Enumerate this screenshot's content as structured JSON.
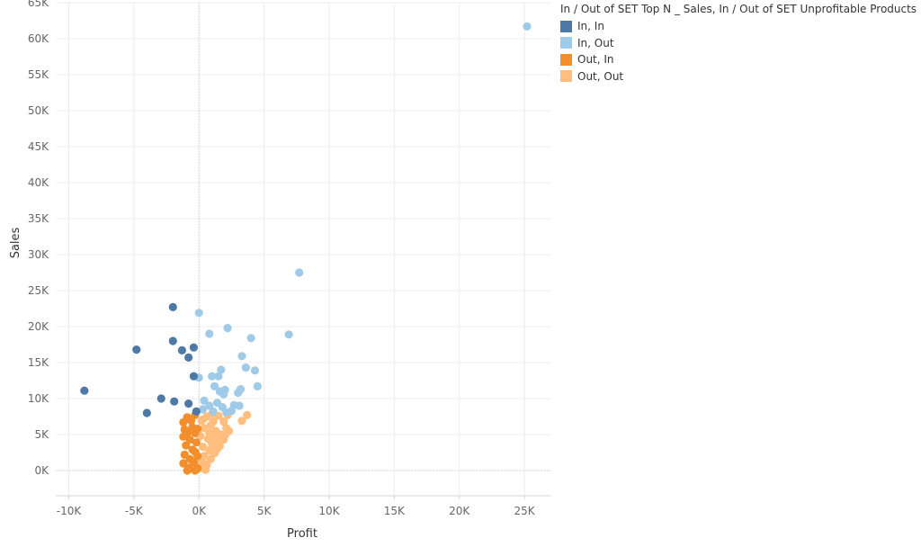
{
  "chart_data": {
    "type": "scatter",
    "xlabel": "Profit",
    "ylabel": "Sales",
    "xlim": [
      -11000,
      27000
    ],
    "ylim": [
      -3500,
      65000
    ],
    "x_ticks": [
      -10000,
      -5000,
      0,
      5000,
      10000,
      15000,
      20000,
      25000
    ],
    "x_tick_labels": [
      "-10K",
      "-5K",
      "0K",
      "5K",
      "10K",
      "15K",
      "20K",
      "25K"
    ],
    "y_ticks": [
      0,
      5000,
      10000,
      15000,
      20000,
      25000,
      30000,
      35000,
      40000,
      45000,
      50000,
      55000,
      60000,
      65000
    ],
    "y_tick_labels": [
      "0K",
      "5K",
      "10K",
      "15K",
      "20K",
      "25K",
      "30K",
      "35K",
      "40K",
      "45K",
      "50K",
      "55K",
      "60K",
      "65K"
    ],
    "legend": {
      "title": "In / Out of SET Top N _ Sales, In / Out of SET Unprofitable Products",
      "position": "top-right"
    },
    "series": [
      {
        "name": "In, In",
        "color": "#4e79a7",
        "points": [
          {
            "x": -8800,
            "y": 11100
          },
          {
            "x": -4800,
            "y": 16800
          },
          {
            "x": -4000,
            "y": 8000
          },
          {
            "x": -2900,
            "y": 10000
          },
          {
            "x": -2000,
            "y": 22700
          },
          {
            "x": -2000,
            "y": 18000
          },
          {
            "x": -1900,
            "y": 9600
          },
          {
            "x": -1300,
            "y": 16700
          },
          {
            "x": -800,
            "y": 15700
          },
          {
            "x": -800,
            "y": 9300
          },
          {
            "x": -400,
            "y": 17100
          },
          {
            "x": -400,
            "y": 13100
          },
          {
            "x": -200,
            "y": 8200
          }
        ]
      },
      {
        "name": "In, Out",
        "color": "#a0cbe8",
        "points": [
          {
            "x": 25200,
            "y": 61700
          },
          {
            "x": 7700,
            "y": 27500
          },
          {
            "x": 6900,
            "y": 18900
          },
          {
            "x": 4500,
            "y": 11700
          },
          {
            "x": 4300,
            "y": 13900
          },
          {
            "x": 4000,
            "y": 18400
          },
          {
            "x": 3600,
            "y": 14300
          },
          {
            "x": 3300,
            "y": 15900
          },
          {
            "x": 3200,
            "y": 11300
          },
          {
            "x": 3000,
            "y": 10800
          },
          {
            "x": 3100,
            "y": 9000
          },
          {
            "x": 2700,
            "y": 9100
          },
          {
            "x": 2200,
            "y": 19800
          },
          {
            "x": 2500,
            "y": 8300
          },
          {
            "x": 1700,
            "y": 14000
          },
          {
            "x": 1500,
            "y": 13100
          },
          {
            "x": 1000,
            "y": 13100
          },
          {
            "x": 0,
            "y": 12900
          },
          {
            "x": 0,
            "y": 21900
          },
          {
            "x": 800,
            "y": 19000
          },
          {
            "x": 1200,
            "y": 11700
          },
          {
            "x": 1600,
            "y": 11000
          },
          {
            "x": 2000,
            "y": 11200
          },
          {
            "x": 1900,
            "y": 10600
          },
          {
            "x": 1400,
            "y": 9400
          },
          {
            "x": 1800,
            "y": 8800
          },
          {
            "x": 2100,
            "y": 8100
          },
          {
            "x": 400,
            "y": 9700
          },
          {
            "x": 800,
            "y": 9000
          },
          {
            "x": 300,
            "y": 8500
          },
          {
            "x": 1100,
            "y": 8200
          }
        ]
      },
      {
        "name": "Out, In",
        "color": "#f28e2b",
        "points": [
          {
            "x": -1200,
            "y": 6700
          },
          {
            "x": -900,
            "y": 7400
          },
          {
            "x": -600,
            "y": 6900
          },
          {
            "x": -300,
            "y": 7700
          },
          {
            "x": -1100,
            "y": 5700
          },
          {
            "x": -500,
            "y": 6000
          },
          {
            "x": -1200,
            "y": 4700
          },
          {
            "x": -700,
            "y": 4300
          },
          {
            "x": -300,
            "y": 5200
          },
          {
            "x": -1000,
            "y": 3500
          },
          {
            "x": -500,
            "y": 2900
          },
          {
            "x": -200,
            "y": 3900
          },
          {
            "x": -1100,
            "y": 2200
          },
          {
            "x": -700,
            "y": 1600
          },
          {
            "x": -300,
            "y": 2600
          },
          {
            "x": -1200,
            "y": 1000
          },
          {
            "x": -800,
            "y": 400
          },
          {
            "x": -400,
            "y": 1100
          },
          {
            "x": -900,
            "y": 0
          },
          {
            "x": -300,
            "y": 0
          },
          {
            "x": -100,
            "y": 300
          },
          {
            "x": -100,
            "y": 2000
          },
          {
            "x": -100,
            "y": 5800
          },
          {
            "x": -900,
            "y": 5200
          }
        ]
      },
      {
        "name": "Out, Out",
        "color": "#ffbe7d",
        "points": [
          {
            "x": 3700,
            "y": 7700
          },
          {
            "x": 3300,
            "y": 6900
          },
          {
            "x": 2200,
            "y": 7700
          },
          {
            "x": 1900,
            "y": 6800
          },
          {
            "x": 2100,
            "y": 5900
          },
          {
            "x": 2300,
            "y": 5500
          },
          {
            "x": 1900,
            "y": 4300
          },
          {
            "x": 1600,
            "y": 3400
          },
          {
            "x": 1200,
            "y": 4600
          },
          {
            "x": 1500,
            "y": 7600
          },
          {
            "x": 1000,
            "y": 7900
          },
          {
            "x": 600,
            "y": 7500
          },
          {
            "x": 200,
            "y": 6900
          },
          {
            "x": 900,
            "y": 6300
          },
          {
            "x": 400,
            "y": 5900
          },
          {
            "x": 1300,
            "y": 5500
          },
          {
            "x": 100,
            "y": 4800
          },
          {
            "x": 700,
            "y": 4400
          },
          {
            "x": 1000,
            "y": 3700
          },
          {
            "x": 300,
            "y": 3300
          },
          {
            "x": 800,
            "y": 2800
          },
          {
            "x": 1200,
            "y": 2400
          },
          {
            "x": 400,
            "y": 2000
          },
          {
            "x": 900,
            "y": 1600
          },
          {
            "x": 200,
            "y": 1200
          },
          {
            "x": 600,
            "y": 800
          },
          {
            "x": 100,
            "y": 400
          },
          {
            "x": 500,
            "y": 100
          },
          {
            "x": 1400,
            "y": 3000
          },
          {
            "x": 1700,
            "y": 5000
          },
          {
            "x": 2000,
            "y": 4900
          },
          {
            "x": 1100,
            "y": 6800
          },
          {
            "x": 300,
            "y": 7100
          },
          {
            "x": 800,
            "y": 5200
          },
          {
            "x": 1500,
            "y": 4100
          }
        ]
      }
    ]
  }
}
